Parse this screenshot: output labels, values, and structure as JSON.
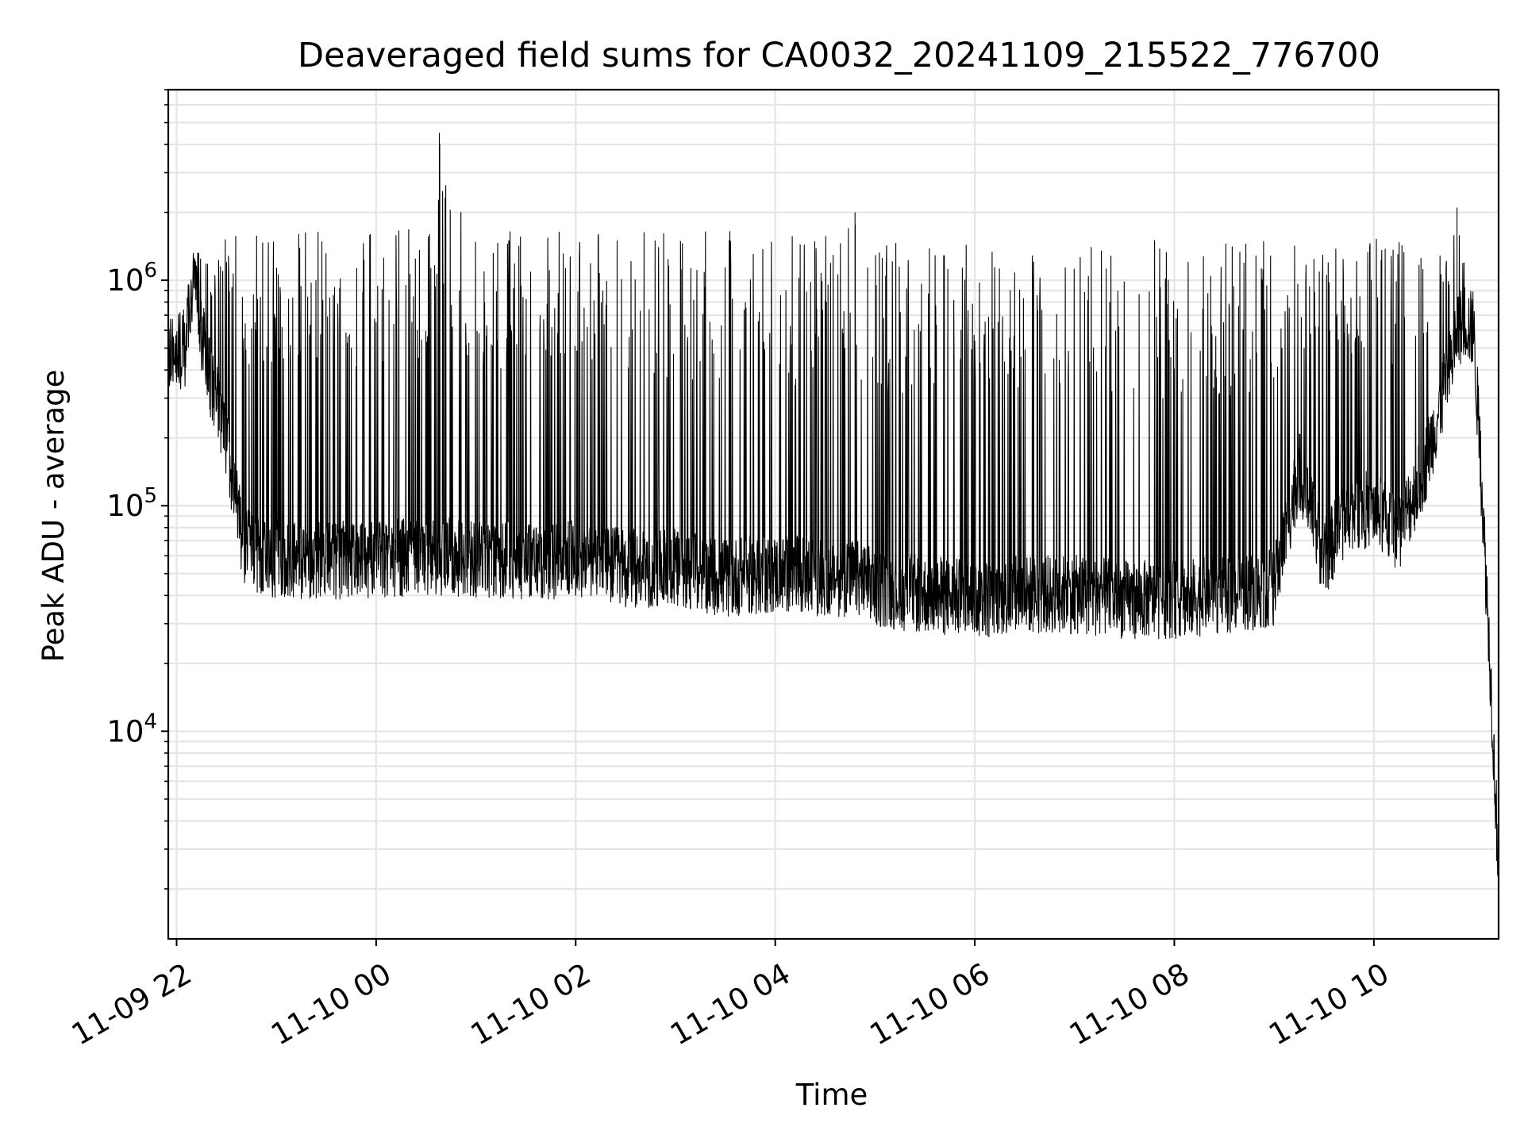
{
  "chart_data": {
    "type": "line",
    "title": "Deaveraged field sums for CA0032_20241109_215522_776700",
    "xlabel": "Time",
    "ylabel": "Peak ADU - average",
    "y_scale": "log",
    "x_range": [
      "2024-11-09 21:55",
      "2024-11-10 11:15"
    ],
    "ylim": [
      1200,
      7000000
    ],
    "x_ticks": [
      {
        "value": "2024-11-09 22:00",
        "label": "11-09 22"
      },
      {
        "value": "2024-11-10 00:00",
        "label": "11-10 00"
      },
      {
        "value": "2024-11-10 02:00",
        "label": "11-10 02"
      },
      {
        "value": "2024-11-10 04:00",
        "label": "11-10 04"
      },
      {
        "value": "2024-11-10 06:00",
        "label": "11-10 06"
      },
      {
        "value": "2024-11-10 08:00",
        "label": "11-10 08"
      },
      {
        "value": "2024-11-10 10:00",
        "label": "11-10 10"
      }
    ],
    "y_ticks": [
      {
        "value": 10000,
        "base": "10",
        "exp": "4"
      },
      {
        "value": 100000,
        "base": "10",
        "exp": "5"
      },
      {
        "value": 1000000,
        "base": "10",
        "exp": "6"
      }
    ],
    "grid": true,
    "line_color": "#000000",
    "grid_color": "#e5e5e5",
    "series": [
      {
        "x": [
          "2024-11-09 21:55",
          "2024-11-09 22:00",
          "2024-11-09 22:05",
          "2024-11-09 22:10",
          "2024-11-09 22:15",
          "2024-11-09 22:20",
          "2024-11-09 22:30",
          "2024-11-09 22:40",
          "2024-11-09 22:50",
          "2024-11-09 23:00",
          "2024-11-09 23:15",
          "2024-11-09 23:30",
          "2024-11-09 23:45",
          "2024-11-10 00:00",
          "2024-11-10 00:30",
          "2024-11-10 00:38",
          "2024-11-10 01:00",
          "2024-11-10 01:30",
          "2024-11-10 02:00",
          "2024-11-10 02:30",
          "2024-11-10 03:00",
          "2024-11-10 03:30",
          "2024-11-10 04:00",
          "2024-11-10 04:30",
          "2024-11-10 04:48",
          "2024-11-10 05:00",
          "2024-11-10 05:30",
          "2024-11-10 06:00",
          "2024-11-10 06:30",
          "2024-11-10 07:00",
          "2024-11-10 07:30",
          "2024-11-10 08:00",
          "2024-11-10 08:30",
          "2024-11-10 09:00",
          "2024-11-10 09:15",
          "2024-11-10 09:30",
          "2024-11-10 09:45",
          "2024-11-10 10:00",
          "2024-11-10 10:15",
          "2024-11-10 10:30",
          "2024-11-10 10:45",
          "2024-11-10 10:50",
          "2024-11-10 10:55",
          "2024-11-10 11:00",
          "2024-11-10 11:05",
          "2024-11-10 11:10",
          "2024-11-10 11:15"
        ],
        "baseline": [
          480000,
          500000,
          520000,
          1050000,
          600000,
          380000,
          200000,
          70000,
          60000,
          60000,
          60000,
          60000,
          60000,
          60000,
          62000,
          62000,
          60000,
          60000,
          60000,
          55000,
          55000,
          50000,
          52000,
          50000,
          50000,
          45000,
          42000,
          40000,
          42000,
          42000,
          40000,
          40000,
          42000,
          45000,
          150000,
          60000,
          100000,
          100000,
          80000,
          150000,
          400000,
          600000,
          700000,
          600000,
          120000,
          20000,
          2500
        ],
        "spike_peak": [
          600000,
          650000,
          700000,
          1150000,
          1500000,
          1600000,
          1650000,
          1700000,
          1750000,
          1700000,
          1700000,
          1700000,
          1700000,
          1700000,
          1700000,
          4500000,
          1700000,
          1650000,
          1650000,
          1650000,
          1650000,
          1650000,
          1600000,
          1600000,
          2000000,
          1550000,
          1550000,
          1500000,
          1500000,
          1500000,
          1500000,
          1500000,
          1500000,
          1500000,
          1550000,
          1550000,
          1600000,
          1550000,
          1500000,
          1450000,
          1200000,
          2100000,
          1100000,
          900000,
          200000,
          20000,
          2500
        ]
      }
    ]
  }
}
